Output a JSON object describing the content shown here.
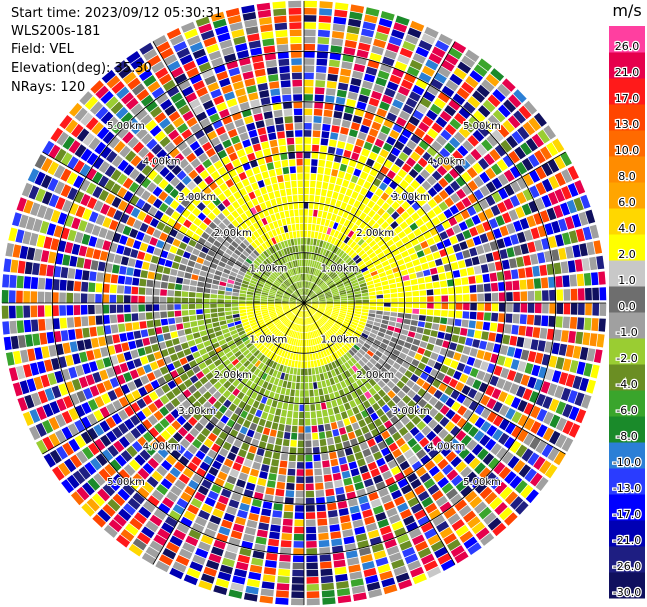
{
  "header": {
    "start_time": "Start time: 2023/09/12 05:30:31",
    "instrument": "WLS200s-181",
    "field": "Field: VEL",
    "elevation": "Elevation(deg): 35.30",
    "nrays": "NRays: 120"
  },
  "chart_data": {
    "type": "heatmap",
    "projection": "polar",
    "field": "VEL",
    "colorbar": {
      "unit": "m/s",
      "levels": [
        -30.0,
        -26.0,
        -21.0,
        -17.0,
        -13.0,
        -10.0,
        -8.0,
        -6.0,
        -4.0,
        -2.0,
        -1.0,
        0.0,
        1.0,
        2.0,
        4.0,
        6.0,
        8.0,
        10.0,
        13.0,
        17.0,
        21.0,
        26.0
      ],
      "tick_labels": [
        "-30.0",
        "-26.0",
        "-21.0",
        "-17.0",
        "-13.0",
        "-10.0",
        "-8.0",
        "-6.0",
        "-4.0",
        "-2.0",
        "-1.0",
        "0.0",
        "1.0",
        "2.0",
        "4.0",
        "6.0",
        "8.0",
        "10.0",
        "13.0",
        "17.0",
        "21.0",
        "26.0"
      ],
      "colors": [
        "#10105e",
        "#1e1e82",
        "#0000b4",
        "#0000ff",
        "#2a3cff",
        "#2b7fd6",
        "#1a8a2a",
        "#3aa52c",
        "#6b8e23",
        "#9acd32",
        "#a0a0a0",
        "#6e6e6e",
        "#c8c8c8",
        "#ffff00",
        "#ffd700",
        "#ffa500",
        "#ff8c00",
        "#ff6a00",
        "#ff4500",
        "#ff1a1a",
        "#e6004c",
        "#ff3fa0"
      ]
    },
    "range_rings_km": [
      1.0,
      2.0,
      3.0,
      4.0,
      5.0
    ],
    "range_ring_labels": [
      "1.00km",
      "2.00km",
      "3.00km",
      "4.00km",
      "5.00km"
    ],
    "nrays": 120,
    "max_range_km": 6.0,
    "azimuth_lines_deg": [
      0,
      30,
      60,
      90,
      120,
      150,
      180,
      210,
      240,
      270,
      300,
      330
    ]
  }
}
